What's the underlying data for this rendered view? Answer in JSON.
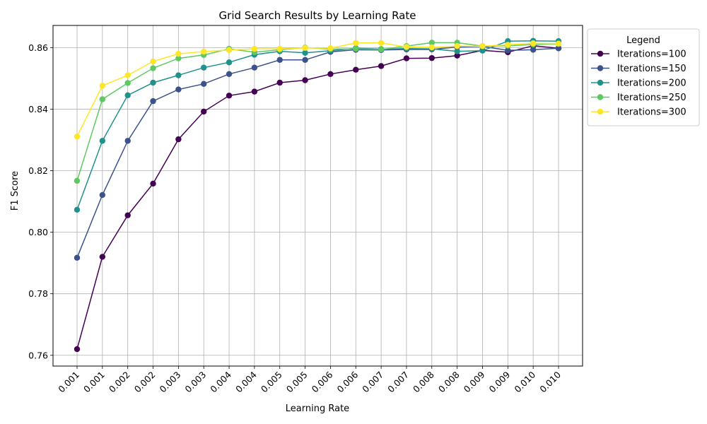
{
  "chart_data": {
    "type": "line",
    "title": "Grid Search Results by Learning Rate",
    "xlabel": "Learning Rate",
    "ylabel": "F1 Score",
    "categories": [
      "0.001",
      "0.001",
      "0.002",
      "0.002",
      "0.003",
      "0.003",
      "0.004",
      "0.004",
      "0.005",
      "0.005",
      "0.006",
      "0.006",
      "0.007",
      "0.007",
      "0.008",
      "0.008",
      "0.009",
      "0.009",
      "0.010",
      "0.010"
    ],
    "ylim": [
      0.7565,
      0.8672
    ],
    "yticks": [
      0.76,
      0.78,
      0.8,
      0.82,
      0.84,
      0.86
    ],
    "ytick_labels": [
      "0.76",
      "0.78",
      "0.80",
      "0.82",
      "0.84",
      "0.86"
    ],
    "grid": true,
    "legend": {
      "title": "Legend",
      "placement": "outside-right"
    },
    "series": [
      {
        "name": "Iterations=100",
        "color": "#440154",
        "values": [
          0.762,
          0.792,
          0.8055,
          0.8158,
          0.8302,
          0.8392,
          0.8444,
          0.8457,
          0.8486,
          0.8494,
          0.8514,
          0.8528,
          0.854,
          0.8565,
          0.8566,
          0.8574,
          0.8591,
          0.8585,
          0.8606,
          0.8598
        ]
      },
      {
        "name": "Iterations=150",
        "color": "#3b528b",
        "values": [
          0.7917,
          0.8121,
          0.8297,
          0.8426,
          0.8464,
          0.8482,
          0.8514,
          0.8535,
          0.856,
          0.856,
          0.8586,
          0.8593,
          0.8592,
          0.8594,
          0.8594,
          0.8602,
          0.8604,
          0.8591,
          0.8593,
          0.8598
        ]
      },
      {
        "name": "Iterations=200",
        "color": "#21918c",
        "values": [
          0.8073,
          0.8297,
          0.8445,
          0.8486,
          0.851,
          0.8535,
          0.8552,
          0.8577,
          0.8588,
          0.8583,
          0.859,
          0.8598,
          0.8595,
          0.8597,
          0.8596,
          0.8588,
          0.859,
          0.8621,
          0.8622,
          0.8621
        ]
      },
      {
        "name": "Iterations=250",
        "color": "#5ec962",
        "values": [
          0.8167,
          0.8432,
          0.8485,
          0.8533,
          0.8565,
          0.8576,
          0.8596,
          0.8585,
          0.8593,
          0.86,
          0.8595,
          0.8596,
          0.8594,
          0.8605,
          0.8616,
          0.8616,
          0.8605,
          0.8606,
          0.861,
          0.8612
        ]
      },
      {
        "name": "Iterations=300",
        "color": "#fde725",
        "values": [
          0.8311,
          0.8476,
          0.851,
          0.8555,
          0.858,
          0.8587,
          0.8592,
          0.8596,
          0.8596,
          0.8599,
          0.8598,
          0.8615,
          0.8615,
          0.8602,
          0.8601,
          0.8605,
          0.8605,
          0.8609,
          0.8614,
          0.8613
        ]
      }
    ]
  }
}
